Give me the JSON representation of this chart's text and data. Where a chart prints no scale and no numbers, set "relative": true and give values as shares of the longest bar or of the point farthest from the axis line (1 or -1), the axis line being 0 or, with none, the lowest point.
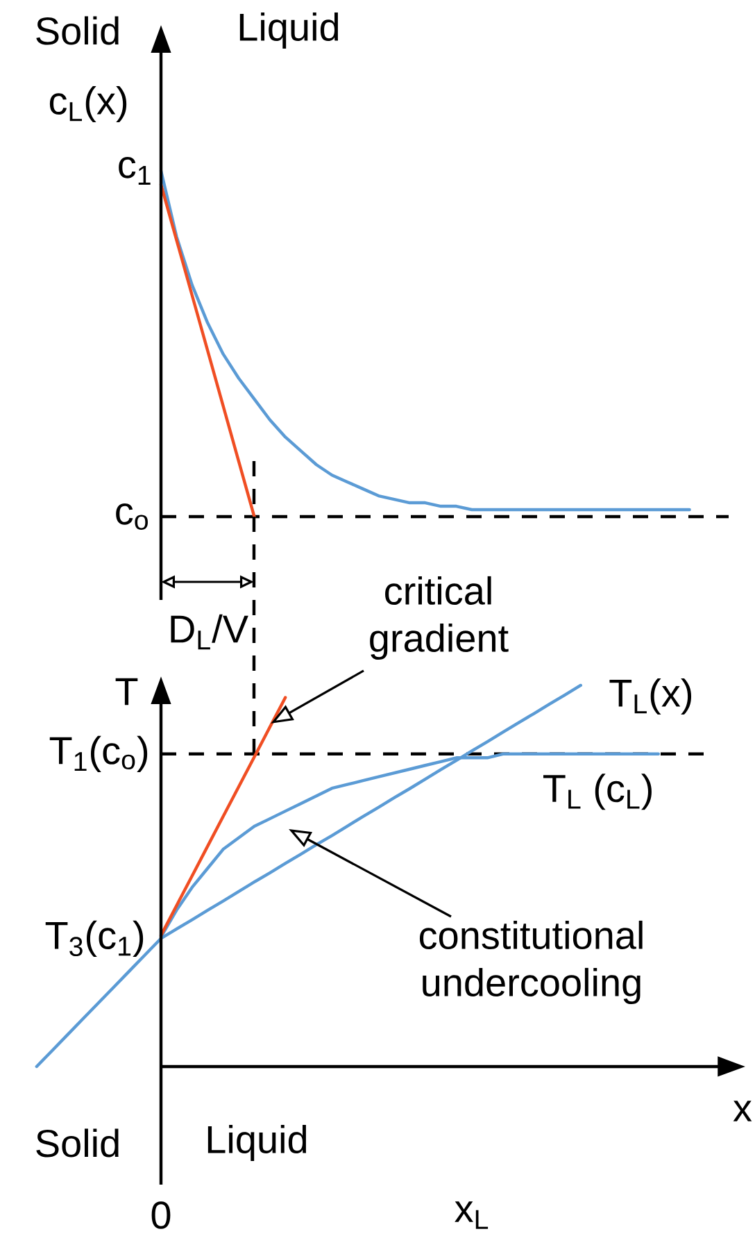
{
  "chart_data": [
    {
      "type": "line",
      "relative": true,
      "ylabel": "c$_{L}$(x)",
      "tick_labels": false,
      "categories": [
        null,
        null,
        null,
        null,
        null,
        null,
        null,
        null,
        null,
        null,
        null,
        null,
        null,
        null,
        null,
        null,
        null,
        null,
        null,
        null,
        null,
        null,
        null,
        null,
        null,
        null,
        null,
        null,
        null,
        null,
        null,
        null,
        null,
        null,
        null,
        null,
        null,
        null,
        null,
        null,
        null,
        null,
        null,
        null,
        null,
        null
      ],
      "annotations": [
        "Solid",
        "Liquid",
        "c$_{1}$",
        "D$_{L}$/V"
      ],
      "ref_lines": [
        {
          "axis": "y",
          "value": 0,
          "label": "c$_{o}$",
          "line_style": "dashed",
          "color": "#000000"
        }
      ],
      "series": [
        {
          "color": "#5b9bd5",
          "values": [
            null,
            null,
            null,
            null,
            null,
            null,
            null,
            null,
            1,
            0.81,
            0.67,
            0.56,
            0.47,
            0.4,
            0.34,
            0.28,
            0.23,
            0.19,
            0.15,
            0.12,
            0.1,
            0.08,
            0.06,
            0.05,
            0.04,
            0.04,
            0.03,
            0.03,
            0.02,
            0.02,
            0.02,
            0.02,
            0.02,
            0.02,
            0.02,
            0.02,
            0.02,
            0.02,
            0.02,
            0.02,
            0.02,
            0.02,
            0.02,
            null,
            null,
            null
          ]
        },
        {
          "color": "#f04e23",
          "values": [
            null,
            null,
            null,
            null,
            null,
            null,
            null,
            null,
            0.96,
            0.8,
            0.64,
            0.48,
            0.32,
            0.16,
            0,
            null,
            null,
            null,
            null,
            null,
            null,
            null,
            null,
            null,
            null,
            null,
            null,
            null,
            null,
            null,
            null,
            null,
            null,
            null,
            null,
            null,
            null,
            null,
            null,
            null,
            null,
            null,
            null,
            null,
            null,
            null
          ]
        }
      ]
    },
    {
      "type": "line",
      "relative": true,
      "xlabel": "x",
      "ylabel": "T",
      "tick_labels": "x",
      "categories": [
        null,
        null,
        null,
        null,
        null,
        null,
        null,
        null,
        "0",
        null,
        null,
        null,
        null,
        null,
        null,
        null,
        null,
        null,
        null,
        null,
        null,
        null,
        null,
        null,
        null,
        null,
        null,
        null,
        "x$_{L}$",
        null,
        null,
        null,
        null,
        null,
        null,
        null,
        null,
        null,
        null,
        null,
        null,
        null,
        null,
        null,
        null,
        null
      ],
      "annotations": [
        "Solid",
        "Liquid",
        "critical gradient",
        "constitutional undercooling",
        "T$_{3}$(c$_{1}$)"
      ],
      "ref_lines": [
        {
          "axis": "y",
          "value": 0.82,
          "label": "T$_{1}$(c$_{o}$)",
          "line_style": "dashed",
          "color": "#000000"
        }
      ],
      "series": [
        {
          "name": "T$_{L}$(x)",
          "color": "#5b9bd5",
          "values": [
            0,
            0.042,
            0.084,
            0.126,
            0.168,
            0.21,
            0.252,
            0.294,
            0.336,
            0.361,
            0.385,
            0.41,
            0.434,
            0.459,
            0.484,
            0.508,
            0.533,
            0.557,
            0.582,
            0.606,
            0.631,
            0.656,
            0.68,
            0.705,
            0.729,
            0.754,
            0.779,
            0.803,
            0.828,
            0.852,
            0.877,
            0.902,
            0.926,
            0.951,
            0.975,
            1,
            null,
            null,
            null,
            null,
            null,
            null,
            null,
            null,
            null,
            null
          ]
        },
        {
          "name": "T$_{L}$ (c$_{L}$)",
          "color": "#5b9bd5",
          "values": [
            null,
            null,
            null,
            null,
            null,
            null,
            null,
            null,
            0.34,
            0.41,
            0.47,
            0.52,
            0.57,
            0.6,
            0.63,
            0.65,
            0.67,
            0.69,
            0.71,
            0.73,
            0.74,
            0.75,
            0.76,
            0.77,
            0.78,
            0.79,
            0.8,
            0.81,
            0.81,
            0.81,
            0.82,
            0.82,
            0.82,
            0.82,
            0.82,
            0.82,
            0.82,
            0.82,
            0.82,
            0.82,
            0.82,
            null,
            null,
            null,
            null,
            null
          ]
        },
        {
          "color": "#f04e23",
          "values": [
            null,
            null,
            null,
            null,
            null,
            null,
            null,
            null,
            0.344,
            0.422,
            0.5,
            0.578,
            0.656,
            0.734,
            0.812,
            0.89,
            0.968,
            null,
            null,
            null,
            null,
            null,
            null,
            null,
            null,
            null,
            null,
            null,
            null,
            null,
            null,
            null,
            null,
            null,
            null,
            null,
            null,
            null,
            null,
            null,
            null,
            null,
            null,
            null,
            null,
            null
          ]
        }
      ]
    }
  ]
}
